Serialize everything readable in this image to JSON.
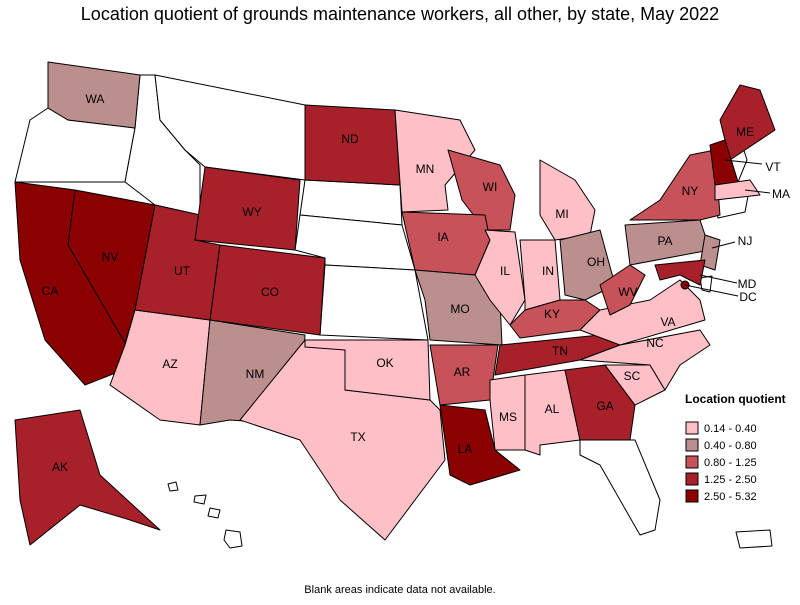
{
  "title": "Location quotient of grounds maintenance workers, all other, by state, May 2022",
  "legend": {
    "title": "Location quotient",
    "items": [
      {
        "label": "0.14 - 0.40",
        "color": "#ffbfc6"
      },
      {
        "label": "0.40 - 0.80",
        "color": "#bc8f8f"
      },
      {
        "label": "0.80 - 1.25",
        "color": "#c8525a"
      },
      {
        "label": "1.25 - 2.50",
        "color": "#a8202a"
      },
      {
        "label": "2.50 - 5.32",
        "color": "#8b0000"
      }
    ]
  },
  "states": [
    {
      "label": "WA",
      "color": "#bc8f8f"
    },
    {
      "label": "CA",
      "color": "#8b0000"
    },
    {
      "label": "NV",
      "color": "#8b0000"
    },
    {
      "label": "AZ",
      "color": "#ffbfc6"
    },
    {
      "label": "UT",
      "color": "#a8202a"
    },
    {
      "label": "WY",
      "color": "#a8202a"
    },
    {
      "label": "CO",
      "color": "#a8202a"
    },
    {
      "label": "NM",
      "color": "#bc8f8f"
    },
    {
      "label": "ND",
      "color": "#a8202a"
    },
    {
      "label": "MN",
      "color": "#ffbfc6"
    },
    {
      "label": "WI",
      "color": "#c8525a"
    },
    {
      "label": "IA",
      "color": "#c8525a"
    },
    {
      "label": "MO",
      "color": "#bc8f8f"
    },
    {
      "label": "AR",
      "color": "#c8525a"
    },
    {
      "label": "LA",
      "color": "#8b0000"
    },
    {
      "label": "TX",
      "color": "#ffbfc6"
    },
    {
      "label": "OK",
      "color": "#ffbfc6"
    },
    {
      "label": "IL",
      "color": "#ffbfc6"
    },
    {
      "label": "IN",
      "color": "#ffbfc6"
    },
    {
      "label": "MI",
      "color": "#ffbfc6"
    },
    {
      "label": "OH",
      "color": "#bc8f8f"
    },
    {
      "label": "KY",
      "color": "#c8525a"
    },
    {
      "label": "TN",
      "color": "#a8202a"
    },
    {
      "label": "MS",
      "color": "#ffbfc6"
    },
    {
      "label": "AL",
      "color": "#ffbfc6"
    },
    {
      "label": "GA",
      "color": "#a8202a"
    },
    {
      "label": "SC",
      "color": "#ffbfc6"
    },
    {
      "label": "NC",
      "color": "#ffbfc6"
    },
    {
      "label": "VA",
      "color": "#ffbfc6"
    },
    {
      "label": "WV",
      "color": "#c8525a"
    },
    {
      "label": "PA",
      "color": "#bc8f8f"
    },
    {
      "label": "NY",
      "color": "#c8525a"
    },
    {
      "label": "ME",
      "color": "#a8202a"
    },
    {
      "label": "VT",
      "color": "#8b0000"
    },
    {
      "label": "MA",
      "color": "#ffbfc6"
    },
    {
      "label": "NJ",
      "color": "#bc8f8f"
    },
    {
      "label": "MD",
      "color": "#a8202a"
    },
    {
      "label": "DC",
      "color": "#8b0000"
    },
    {
      "label": "AK",
      "color": "#a8202a"
    }
  ],
  "note": "Blank areas indicate data not available."
}
